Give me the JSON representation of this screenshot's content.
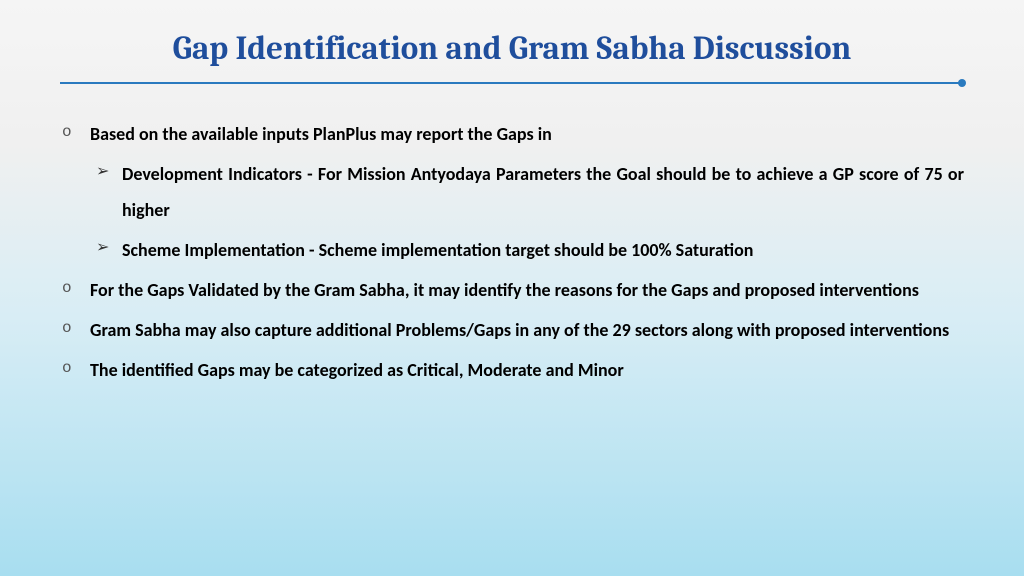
{
  "colors": {
    "title": "#1f4e9c",
    "divider": "#2a7abf",
    "text": "#000000"
  },
  "typography": {
    "title_fontsize": 33,
    "body_fontsize": 18,
    "title_family": "Cambria, Georgia, serif",
    "body_family": "Calibri, sans-serif",
    "body_weight": "bold"
  },
  "title": "Gap Identification and Gram Sabha Discussion",
  "bullets": {
    "b1": "Based on the available inputs PlanPlus may report the Gaps in",
    "b1_1": "Development Indicators - For Mission Antyodaya Parameters the Goal should be to achieve a GP score of 75 or higher",
    "b1_2": "Scheme Implementation - Scheme implementation target should be 100% Saturation",
    "b2": "For the Gaps Validated by the Gram Sabha, it may identify the reasons for the Gaps and proposed interventions",
    "b3": "Gram Sabha may also capture additional Problems/Gaps in any of the 29 sectors  along with proposed interventions",
    "b4": "The identified Gaps may be categorized as Critical, Moderate and Minor"
  }
}
